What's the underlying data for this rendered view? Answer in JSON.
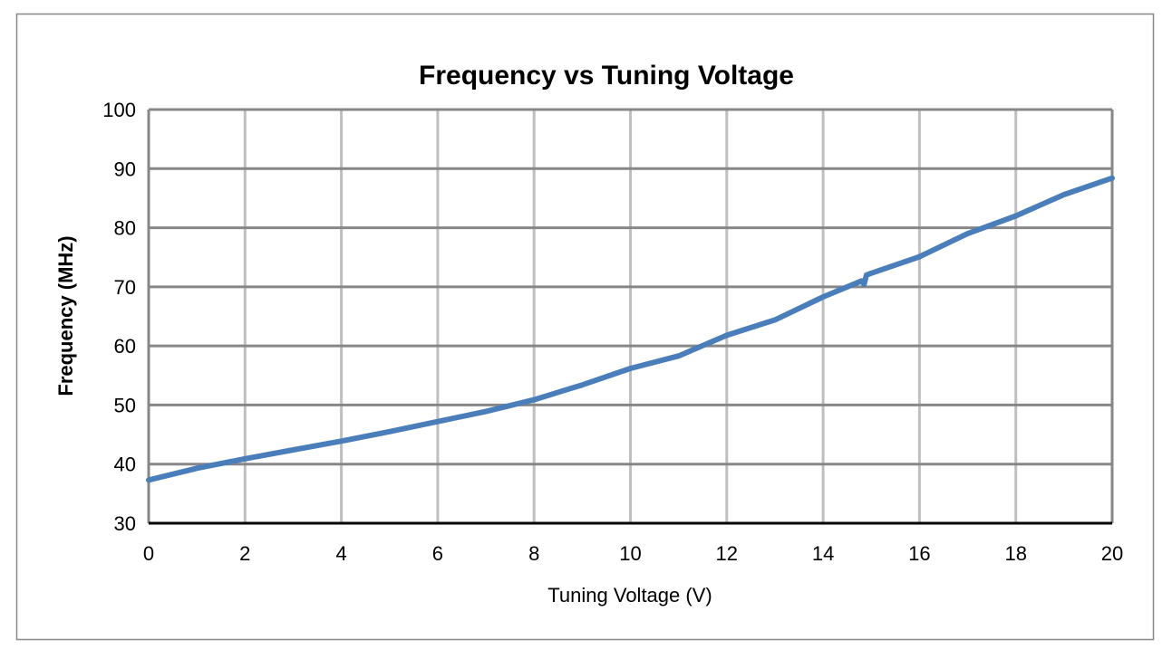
{
  "chart_data": {
    "type": "line",
    "title": "Frequency vs Tuning Voltage",
    "xlabel": "Tuning Voltage (V)",
    "ylabel": "Frequency (MHz)",
    "xlim": [
      0,
      20
    ],
    "ylim": [
      30,
      100
    ],
    "x_ticks": [
      "0",
      "2",
      "4",
      "6",
      "8",
      "10",
      "12",
      "14",
      "16",
      "18",
      "20"
    ],
    "y_ticks": [
      "30",
      "40",
      "50",
      "60",
      "70",
      "80",
      "90",
      "100"
    ],
    "grid": true,
    "legend": "none",
    "series": [
      {
        "color": "#4a7ebb",
        "x": [
          0,
          1,
          2,
          3,
          4,
          5,
          6,
          7,
          8,
          9,
          10,
          11,
          12,
          13,
          14,
          14.8,
          14.85,
          14.9,
          15,
          16,
          17,
          18,
          19,
          20
        ],
        "y": [
          37.3,
          39.3,
          40.9,
          42.4,
          43.9,
          45.5,
          47.2,
          48.9,
          50.9,
          53.4,
          56.2,
          58.3,
          61.8,
          64.4,
          68.3,
          71.0,
          70.4,
          72.0,
          72.3,
          75.1,
          79.0,
          82.0,
          85.6,
          88.4
        ]
      }
    ]
  }
}
